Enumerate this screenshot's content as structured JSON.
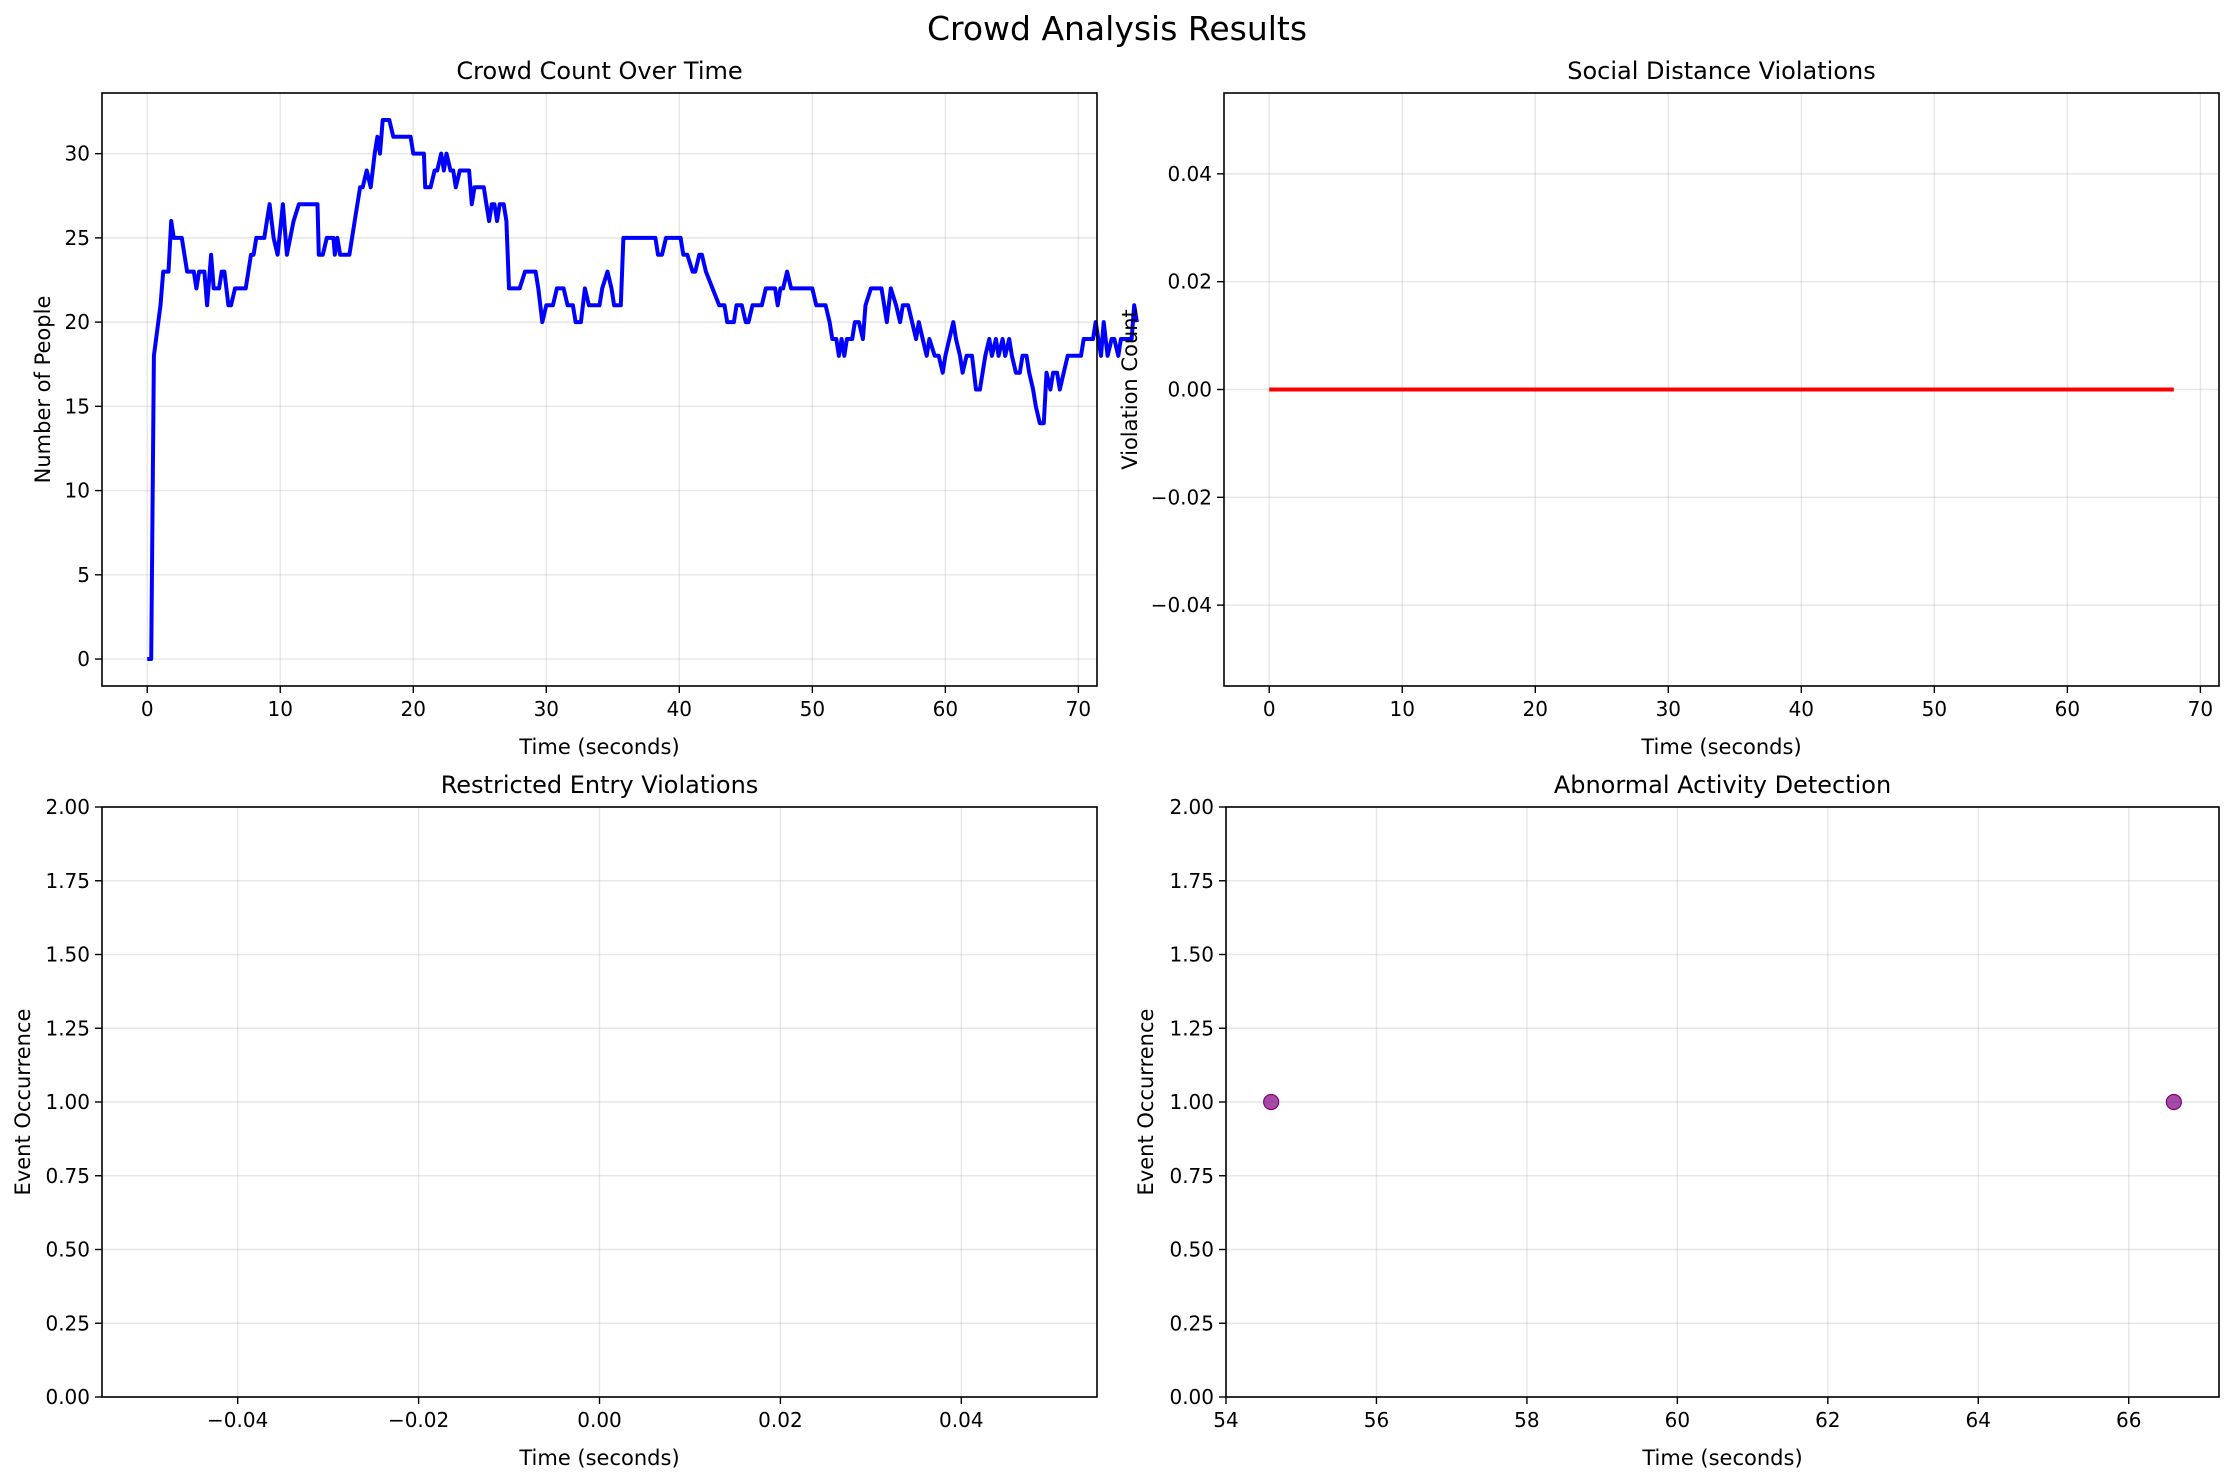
{
  "figure": {
    "title": "Crowd Analysis Results"
  },
  "colors": {
    "crowd_line": "#0000ff",
    "violation_line": "#ff0000",
    "event_marker": "#800080",
    "grid": "#b0b0b0"
  },
  "chart_data": [
    {
      "id": "crowd",
      "type": "line",
      "title": "Crowd Count Over Time",
      "xlabel": "Time (seconds)",
      "ylabel": "Number of People",
      "xlim": [
        -3.4,
        71.4
      ],
      "ylim": [
        -1.6,
        33.6
      ],
      "xticks": [
        0,
        10,
        20,
        30,
        40,
        50,
        60,
        70
      ],
      "yticks": [
        0,
        5,
        10,
        15,
        20,
        25,
        30
      ],
      "xtick_labels": [
        "0",
        "10",
        "20",
        "30",
        "40",
        "50",
        "60",
        "70"
      ],
      "ytick_labels": [
        "0",
        "5",
        "10",
        "15",
        "20",
        "25",
        "30"
      ],
      "grid": true,
      "series": [
        {
          "color": "#0000ff",
          "points": [
            [
              0,
              0
            ],
            [
              0.3,
              0
            ],
            [
              0.5,
              18
            ],
            [
              1,
              21
            ],
            [
              1.2,
              23
            ],
            [
              1.6,
              23
            ],
            [
              1.8,
              26
            ],
            [
              2,
              25
            ],
            [
              2.6,
              25
            ],
            [
              3,
              23
            ],
            [
              3.5,
              23
            ],
            [
              3.7,
              22
            ],
            [
              3.9,
              23
            ],
            [
              4.3,
              23
            ],
            [
              4.5,
              21
            ],
            [
              4.8,
              24
            ],
            [
              5,
              22
            ],
            [
              5.4,
              22
            ],
            [
              5.6,
              23
            ],
            [
              5.8,
              23
            ],
            [
              6.1,
              21
            ],
            [
              6.3,
              21
            ],
            [
              6.6,
              22
            ],
            [
              7.4,
              22
            ],
            [
              7.8,
              24
            ],
            [
              8,
              24
            ],
            [
              8.2,
              25
            ],
            [
              8.8,
              25
            ],
            [
              9,
              26
            ],
            [
              9.2,
              27
            ],
            [
              9.5,
              25
            ],
            [
              9.8,
              24
            ],
            [
              10.2,
              27
            ],
            [
              10.5,
              24
            ],
            [
              11,
              26
            ],
            [
              11.4,
              27
            ],
            [
              12.8,
              27
            ],
            [
              12.9,
              24
            ],
            [
              13.2,
              24
            ],
            [
              13.5,
              25
            ],
            [
              14,
              25
            ],
            [
              14.1,
              24
            ],
            [
              14.3,
              25
            ],
            [
              14.5,
              24
            ],
            [
              15.2,
              24
            ],
            [
              15.6,
              26
            ],
            [
              16,
              28
            ],
            [
              16.2,
              28
            ],
            [
              16.5,
              29
            ],
            [
              16.8,
              28
            ],
            [
              17.1,
              30
            ],
            [
              17.3,
              31
            ],
            [
              17.5,
              30
            ],
            [
              17.7,
              32
            ],
            [
              18.2,
              32
            ],
            [
              18.5,
              31
            ],
            [
              19.8,
              31
            ],
            [
              20,
              30
            ],
            [
              20.8,
              30
            ],
            [
              20.9,
              28
            ],
            [
              21.3,
              28
            ],
            [
              21.6,
              29
            ],
            [
              21.8,
              29
            ],
            [
              22.1,
              30
            ],
            [
              22.3,
              29
            ],
            [
              22.5,
              30
            ],
            [
              22.8,
              29
            ],
            [
              23,
              29
            ],
            [
              23.2,
              28
            ],
            [
              23.5,
              29
            ],
            [
              24.2,
              29
            ],
            [
              24.4,
              27
            ],
            [
              24.6,
              28
            ],
            [
              25.3,
              28
            ],
            [
              25.5,
              27
            ],
            [
              25.7,
              26
            ],
            [
              25.9,
              27
            ],
            [
              26.1,
              27
            ],
            [
              26.3,
              26
            ],
            [
              26.5,
              27
            ],
            [
              26.8,
              27
            ],
            [
              27,
              26
            ],
            [
              27.2,
              22
            ],
            [
              28,
              22
            ],
            [
              28.4,
              23
            ],
            [
              29.2,
              23
            ],
            [
              29.4,
              22
            ],
            [
              29.7,
              20
            ],
            [
              30,
              21
            ],
            [
              30.5,
              21
            ],
            [
              30.8,
              22
            ],
            [
              31.3,
              22
            ],
            [
              31.6,
              21
            ],
            [
              32,
              21
            ],
            [
              32.2,
              20
            ],
            [
              32.6,
              20
            ],
            [
              32.9,
              22
            ],
            [
              33.2,
              21
            ],
            [
              34,
              21
            ],
            [
              34.2,
              22
            ],
            [
              34.6,
              23
            ],
            [
              34.9,
              22
            ],
            [
              35.1,
              21
            ],
            [
              35.6,
              21
            ],
            [
              35.8,
              25
            ],
            [
              38.2,
              25
            ],
            [
              38.4,
              24
            ],
            [
              38.7,
              24
            ],
            [
              39,
              25
            ],
            [
              39.3,
              25
            ],
            [
              40.1,
              25
            ],
            [
              40.3,
              24
            ],
            [
              40.6,
              24
            ],
            [
              41,
              23
            ],
            [
              41.2,
              23
            ],
            [
              41.5,
              24
            ],
            [
              41.7,
              24
            ],
            [
              42,
              23
            ],
            [
              43,
              21
            ],
            [
              43.4,
              21
            ],
            [
              43.6,
              20
            ],
            [
              44.1,
              20
            ],
            [
              44.3,
              21
            ],
            [
              44.7,
              21
            ],
            [
              45,
              20
            ],
            [
              45.2,
              20
            ],
            [
              45.5,
              21
            ],
            [
              46.2,
              21
            ],
            [
              46.5,
              22
            ],
            [
              47.2,
              22
            ],
            [
              47.4,
              21
            ],
            [
              47.6,
              22
            ],
            [
              47.8,
              22
            ],
            [
              48.1,
              23
            ],
            [
              48.4,
              22
            ],
            [
              50,
              22
            ],
            [
              50.3,
              21
            ],
            [
              51,
              21
            ],
            [
              51.3,
              20
            ],
            [
              51.5,
              19
            ],
            [
              51.8,
              19
            ],
            [
              52,
              18
            ],
            [
              52.2,
              19
            ],
            [
              52.4,
              18
            ],
            [
              52.6,
              19
            ],
            [
              53,
              19
            ],
            [
              53.2,
              20
            ],
            [
              53.5,
              20
            ],
            [
              53.8,
              19
            ],
            [
              54,
              21
            ],
            [
              54.4,
              22
            ],
            [
              55.2,
              22
            ],
            [
              55.4,
              21
            ],
            [
              55.6,
              20
            ],
            [
              55.9,
              22
            ],
            [
              56.3,
              21
            ],
            [
              56.6,
              20
            ],
            [
              56.8,
              21
            ],
            [
              57.2,
              21
            ],
            [
              57.5,
              20
            ],
            [
              57.8,
              19
            ],
            [
              58,
              20
            ],
            [
              58.3,
              19
            ],
            [
              58.6,
              18
            ],
            [
              58.8,
              19
            ],
            [
              59.2,
              18
            ],
            [
              59.5,
              18
            ],
            [
              59.8,
              17
            ],
            [
              60,
              18
            ],
            [
              60.3,
              19
            ],
            [
              60.6,
              20
            ],
            [
              60.8,
              19
            ],
            [
              61.1,
              18
            ],
            [
              61.3,
              17
            ],
            [
              61.6,
              18
            ],
            [
              62,
              18
            ],
            [
              62.3,
              16
            ],
            [
              62.6,
              16
            ],
            [
              62.8,
              17
            ],
            [
              63,
              18
            ],
            [
              63.3,
              19
            ],
            [
              63.5,
              18
            ],
            [
              63.8,
              19
            ],
            [
              64,
              18
            ],
            [
              64.3,
              19
            ],
            [
              64.5,
              18
            ],
            [
              64.8,
              19
            ],
            [
              65,
              18
            ],
            [
              65.3,
              17
            ],
            [
              65.6,
              17
            ],
            [
              65.8,
              18
            ],
            [
              66.1,
              18
            ],
            [
              66.3,
              17
            ],
            [
              66.6,
              16
            ],
            [
              66.8,
              15
            ],
            [
              67.1,
              14
            ],
            [
              67.4,
              14
            ],
            [
              67.6,
              17
            ],
            [
              67.9,
              16
            ],
            [
              68.1,
              17
            ],
            [
              68.4,
              17
            ],
            [
              68.6,
              16
            ],
            [
              68.9,
              17
            ],
            [
              69.2,
              18
            ],
            [
              70.2,
              18
            ],
            [
              70.4,
              19
            ],
            [
              71.1,
              19
            ],
            [
              71.3,
              20
            ],
            [
              71.5,
              19
            ],
            [
              71.7,
              18
            ],
            [
              71.9,
              20
            ],
            [
              72.2,
              18
            ],
            [
              72.5,
              19
            ],
            [
              72.7,
              19
            ],
            [
              73,
              18
            ],
            [
              73.2,
              19
            ],
            [
              73.6,
              19
            ],
            [
              74,
              19
            ],
            [
              74.2,
              21
            ],
            [
              74.4,
              20
            ]
          ]
        }
      ]
    },
    {
      "id": "social",
      "type": "line",
      "title": "Social Distance Violations",
      "xlabel": "Time (seconds)",
      "ylabel": "Violation Count",
      "xlim": [
        -3.4,
        71.4
      ],
      "ylim": [
        -0.055,
        0.055
      ],
      "xticks": [
        0,
        10,
        20,
        30,
        40,
        50,
        60,
        70
      ],
      "yticks": [
        -0.04,
        -0.02,
        0,
        0.02,
        0.04
      ],
      "xtick_labels": [
        "0",
        "10",
        "20",
        "30",
        "40",
        "50",
        "60",
        "70"
      ],
      "ytick_labels": [
        "−0.04",
        "−0.02",
        "0.00",
        "0.02",
        "0.04"
      ],
      "grid": true,
      "series": [
        {
          "color": "#ff0000",
          "points": [
            [
              0,
              0
            ],
            [
              68,
              0
            ]
          ]
        }
      ]
    },
    {
      "id": "restricted",
      "type": "scatter",
      "title": "Restricted Entry Violations",
      "xlabel": "Time (seconds)",
      "ylabel": "Event Occurrence",
      "xlim": [
        -0.055,
        0.055
      ],
      "ylim": [
        0,
        2
      ],
      "xticks": [
        -0.04,
        -0.02,
        0,
        0.02,
        0.04
      ],
      "yticks": [
        0,
        0.25,
        0.5,
        0.75,
        1,
        1.25,
        1.5,
        1.75,
        2
      ],
      "xtick_labels": [
        "−0.04",
        "−0.02",
        "0.00",
        "0.02",
        "0.04"
      ],
      "ytick_labels": [
        "0.00",
        "0.25",
        "0.50",
        "0.75",
        "1.00",
        "1.25",
        "1.50",
        "1.75",
        "2.00"
      ],
      "grid": true,
      "series": [
        {
          "color": "#ff0000",
          "points": []
        }
      ]
    },
    {
      "id": "abnormal",
      "type": "scatter",
      "title": "Abnormal Activity Detection",
      "xlabel": "Time (seconds)",
      "ylabel": "Event Occurrence",
      "xlim": [
        54,
        67.2
      ],
      "ylim": [
        0,
        2
      ],
      "xticks": [
        54,
        56,
        58,
        60,
        62,
        64,
        66
      ],
      "yticks": [
        0,
        0.25,
        0.5,
        0.75,
        1,
        1.25,
        1.5,
        1.75,
        2
      ],
      "xtick_labels": [
        "54",
        "56",
        "58",
        "60",
        "62",
        "64",
        "66"
      ],
      "ytick_labels": [
        "0.00",
        "0.25",
        "0.50",
        "0.75",
        "1.00",
        "1.25",
        "1.50",
        "1.75",
        "2.00"
      ],
      "grid": true,
      "series": [
        {
          "color": "#800080",
          "points": [
            [
              54.6,
              1
            ],
            [
              66.6,
              1
            ]
          ]
        }
      ]
    }
  ]
}
